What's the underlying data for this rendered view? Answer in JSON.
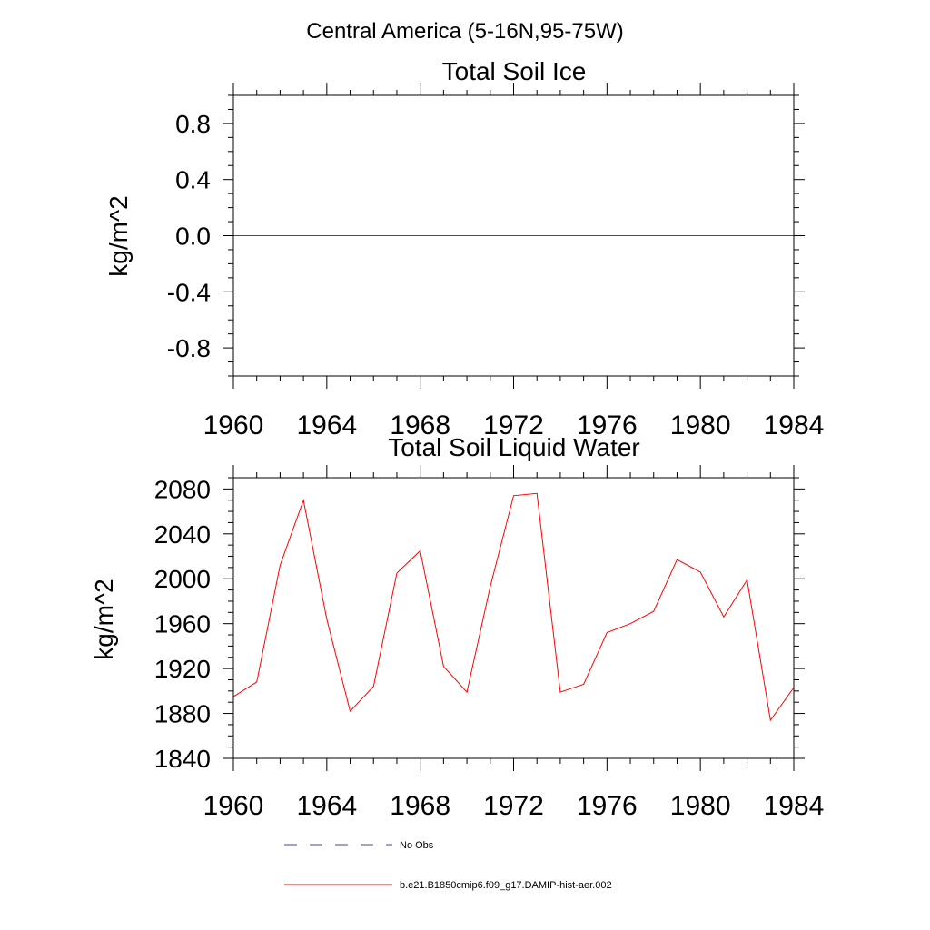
{
  "figure": {
    "title": "Central America (5-16N,95-75W)"
  },
  "chart_data": [
    {
      "type": "line",
      "title": "Total Soil Ice",
      "xlabel": "",
      "ylabel": "kg/m^2",
      "xlim": [
        1960,
        1984
      ],
      "ylim": [
        -1.0,
        1.0
      ],
      "x_ticks": [
        "1960",
        "1964",
        "1968",
        "1972",
        "1976",
        "1980",
        "1984"
      ],
      "y_ticks": [
        "0.8",
        "0.4",
        "0.0",
        "-0.4",
        "-0.8"
      ],
      "series": [
        {
          "name": "b.e21.B1850cmip6.f09_g17.DAMIP-hist-aer.002",
          "color": "#ff0000",
          "x": [
            1960,
            1961,
            1962,
            1963,
            1964,
            1965,
            1966,
            1967,
            1968,
            1969,
            1970,
            1971,
            1972,
            1973,
            1974,
            1975,
            1976,
            1977,
            1978,
            1979,
            1980,
            1981,
            1982,
            1983,
            1984
          ],
          "values": [
            0,
            0,
            0,
            0,
            0,
            0,
            0,
            0,
            0,
            0,
            0,
            0,
            0,
            0,
            0,
            0,
            0,
            0,
            0,
            0,
            0,
            0,
            0,
            0,
            0
          ]
        }
      ],
      "grid": false
    },
    {
      "type": "line",
      "title": "Total Soil Liquid Water",
      "xlabel": "",
      "ylabel": "kg/m^2",
      "xlim": [
        1960,
        1984
      ],
      "ylim": [
        1840,
        2090
      ],
      "x_ticks": [
        "1960",
        "1964",
        "1968",
        "1972",
        "1976",
        "1980",
        "1984"
      ],
      "y_ticks": [
        "2080",
        "2040",
        "2000",
        "1960",
        "1920",
        "1880",
        "1840"
      ],
      "series": [
        {
          "name": "b.e21.B1850cmip6.f09_g17.DAMIP-hist-aer.002",
          "color": "#ff0000",
          "x": [
            1960,
            1961,
            1962,
            1963,
            1964,
            1965,
            1966,
            1967,
            1968,
            1969,
            1970,
            1971,
            1972,
            1973,
            1974,
            1975,
            1976,
            1977,
            1978,
            1979,
            1980,
            1981,
            1982,
            1983,
            1984
          ],
          "values": [
            1895,
            1908,
            2012,
            2070,
            1964,
            1882,
            1904,
            2005,
            2025,
            1922,
            1899,
            1993,
            2074,
            2076,
            1899,
            1906,
            1952,
            1960,
            1971,
            2017,
            2006,
            1966,
            1999,
            1874,
            1903
          ]
        }
      ],
      "grid": false
    }
  ],
  "legend": {
    "placement": "bottom",
    "items": [
      {
        "label": "No Obs",
        "color": "#4a4a8a",
        "dash": "dashed"
      },
      {
        "label": "b.e21.B1850cmip6.f09_g17.DAMIP-hist-aer.002",
        "color": "#ff0000",
        "dash": "solid"
      }
    ]
  }
}
